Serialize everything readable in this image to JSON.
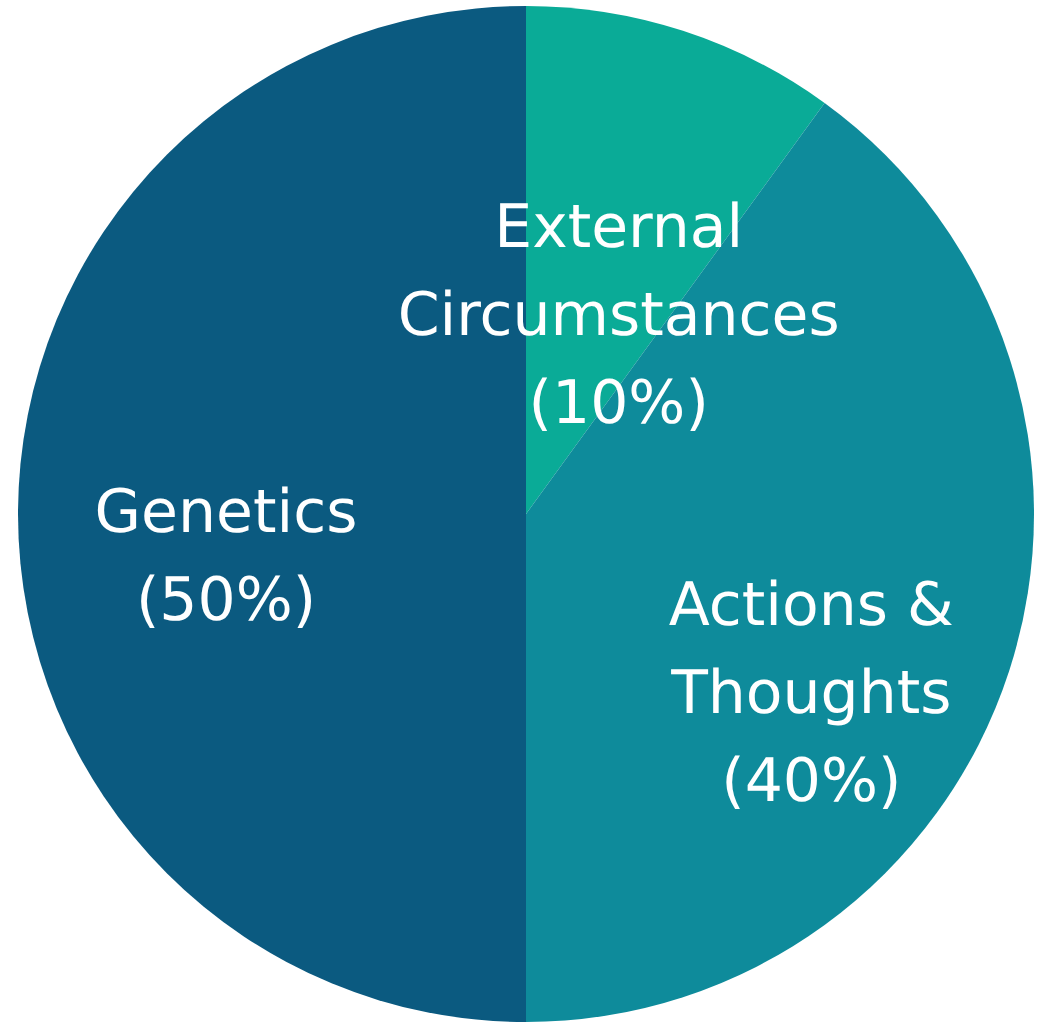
{
  "chart_data": {
    "type": "pie",
    "categories": [
      "External Circumstances",
      "Actions & Thoughts",
      "Genetics"
    ],
    "values": [
      10,
      40,
      50
    ],
    "colors": [
      "#0aab97",
      "#0e8b9b",
      "#0b5a80"
    ],
    "value_labels": [
      "(10%)",
      "(40%)",
      "(50%)"
    ]
  }
}
